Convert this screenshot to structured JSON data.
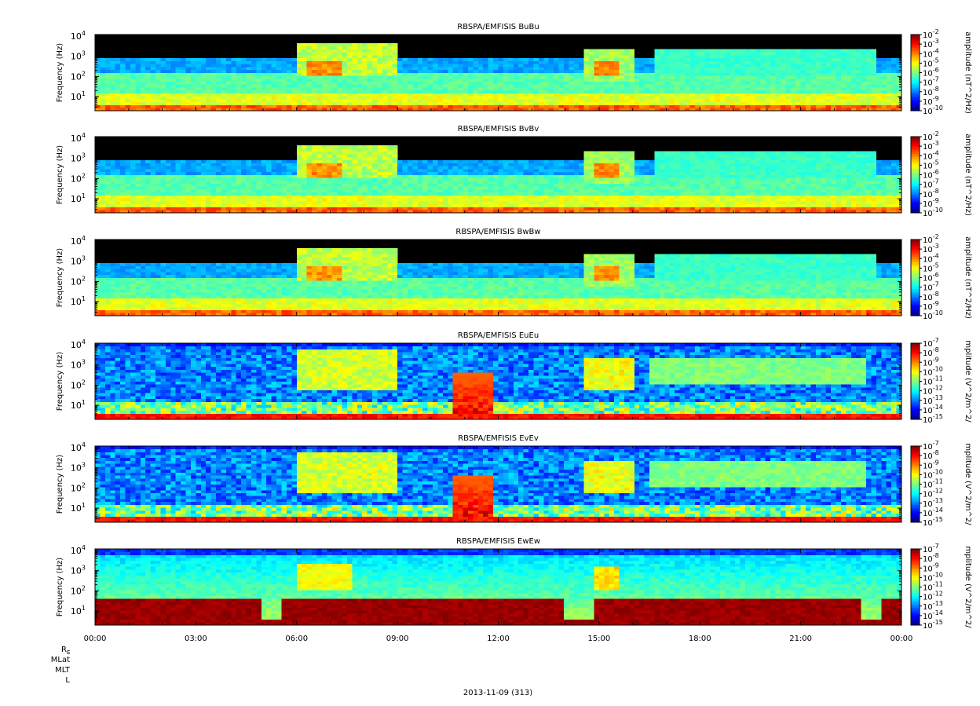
{
  "chart_data": [
    {
      "type": "heatmap",
      "title": "RBSPA/EMFISIS  BuBu",
      "ylabel": "Frequency (Hz)",
      "yscale": "log",
      "ylim": [
        2,
        12000
      ],
      "yticks": [
        {
          "exp": "1",
          "value": 10
        },
        {
          "exp": "2",
          "value": 100
        },
        {
          "exp": "3",
          "value": 1000
        },
        {
          "exp": "4",
          "value": 10000
        }
      ],
      "zlabel": "amplitude (nT^2/Hz)",
      "ztick_exps": [
        "-2",
        "-3",
        "-4",
        "-5",
        "-6",
        "-7",
        "-8",
        "-9",
        "-10"
      ],
      "zrange_exp": [
        -10,
        -2
      ],
      "kind": "B"
    },
    {
      "type": "heatmap",
      "title": "RBSPA/EMFISIS  BvBv",
      "ylabel": "Frequency (Hz)",
      "yscale": "log",
      "ylim": [
        2,
        12000
      ],
      "yticks": [
        {
          "exp": "1",
          "value": 10
        },
        {
          "exp": "2",
          "value": 100
        },
        {
          "exp": "3",
          "value": 1000
        },
        {
          "exp": "4",
          "value": 10000
        }
      ],
      "zlabel": "amplitude (nT^2/Hz)",
      "ztick_exps": [
        "-2",
        "-3",
        "-4",
        "-5",
        "-6",
        "-7",
        "-8",
        "-9",
        "-10"
      ],
      "zrange_exp": [
        -10,
        -2
      ],
      "kind": "B"
    },
    {
      "type": "heatmap",
      "title": "RBSPA/EMFISIS  BwBw",
      "ylabel": "Frequency (Hz)",
      "yscale": "log",
      "ylim": [
        2,
        12000
      ],
      "yticks": [
        {
          "exp": "1",
          "value": 10
        },
        {
          "exp": "2",
          "value": 100
        },
        {
          "exp": "3",
          "value": 1000
        },
        {
          "exp": "4",
          "value": 10000
        }
      ],
      "zlabel": "amplitude (nT^2/Hz)",
      "ztick_exps": [
        "-2",
        "-3",
        "-4",
        "-5",
        "-6",
        "-7",
        "-8",
        "-9",
        "-10"
      ],
      "zrange_exp": [
        -10,
        -2
      ],
      "kind": "B"
    },
    {
      "type": "heatmap",
      "title": "RBSPA/EMFISIS  EuEu",
      "ylabel": "Frequency (Hz)",
      "yscale": "log",
      "ylim": [
        2,
        12000
      ],
      "yticks": [
        {
          "exp": "1",
          "value": 10
        },
        {
          "exp": "2",
          "value": 100
        },
        {
          "exp": "3",
          "value": 1000
        },
        {
          "exp": "4",
          "value": 10000
        }
      ],
      "zlabel": "mplitude (V^2/m^2/",
      "ztick_exps": [
        "-7",
        "-8",
        "-9",
        "-10",
        "-11",
        "-12",
        "-13",
        "-14",
        "-15"
      ],
      "zrange_exp": [
        -15,
        -7
      ],
      "kind": "E"
    },
    {
      "type": "heatmap",
      "title": "RBSPA/EMFISIS  EvEv",
      "ylabel": "Frequency (Hz)",
      "yscale": "log",
      "ylim": [
        2,
        12000
      ],
      "yticks": [
        {
          "exp": "1",
          "value": 10
        },
        {
          "exp": "2",
          "value": 100
        },
        {
          "exp": "3",
          "value": 1000
        },
        {
          "exp": "4",
          "value": 10000
        }
      ],
      "zlabel": "mplitude (V^2/m^2/",
      "ztick_exps": [
        "-7",
        "-8",
        "-9",
        "-10",
        "-11",
        "-12",
        "-13",
        "-14",
        "-15"
      ],
      "zrange_exp": [
        -15,
        -7
      ],
      "kind": "E"
    },
    {
      "type": "heatmap",
      "title": "RBSPA/EMFISIS  EwEw",
      "ylabel": "Frequency (Hz)",
      "yscale": "log",
      "ylim": [
        2,
        12000
      ],
      "yticks": [
        {
          "exp": "1",
          "value": 10
        },
        {
          "exp": "2",
          "value": 100
        },
        {
          "exp": "3",
          "value": 1000
        },
        {
          "exp": "4",
          "value": 10000
        }
      ],
      "zlabel": "mplitude (V^2/m^2/",
      "ztick_exps": [
        "-7",
        "-8",
        "-9",
        "-10",
        "-11",
        "-12",
        "-13",
        "-14",
        "-15"
      ],
      "zrange_exp": [
        -15,
        -7
      ],
      "kind": "EW"
    }
  ],
  "time_axis": {
    "xlim_hours": [
      0,
      24
    ],
    "tick_labels": [
      "00:00",
      "03:00",
      "06:00",
      "09:00",
      "12:00",
      "15:00",
      "18:00",
      "21:00",
      "00:00"
    ],
    "tick_hours": [
      0,
      3,
      6,
      9,
      12,
      15,
      18,
      21,
      24
    ],
    "minor_step_hours": 1
  },
  "ephemeris_labels": {
    "re_base": "R",
    "re_sub": "E",
    "mlat": "MLat",
    "mlt": "MLT",
    "l": "L"
  },
  "date_label": "2013-11-09 (313)",
  "colors": {
    "background": "#000000",
    "axis": "#000000",
    "text": "#000000"
  }
}
